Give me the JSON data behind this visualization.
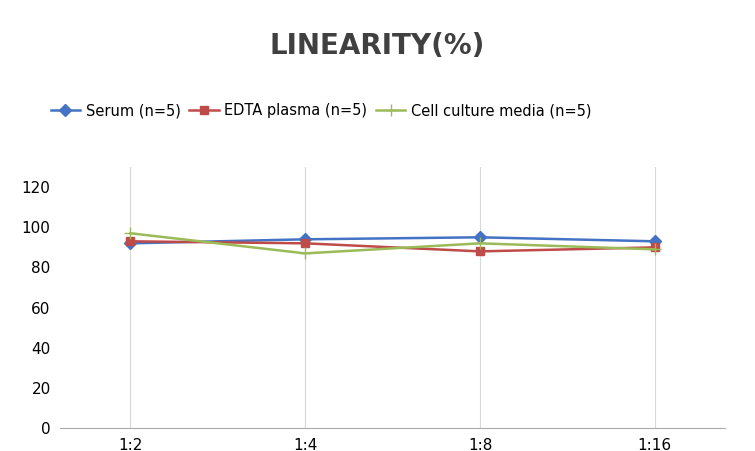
{
  "title": "LINEARITY(%)",
  "title_fontsize": 20,
  "title_fontweight": "bold",
  "x_labels": [
    "1:2",
    "1:4",
    "1:8",
    "1:16"
  ],
  "x_positions": [
    0,
    1,
    2,
    3
  ],
  "series": [
    {
      "label": "Serum (n=5)",
      "values": [
        92,
        94,
        95,
        93
      ],
      "color": "#4472C4",
      "marker": "D",
      "marker_size": 6,
      "linewidth": 1.8
    },
    {
      "label": "EDTA plasma (n=5)",
      "values": [
        93,
        92,
        88,
        90
      ],
      "color": "#BE4B48",
      "marker": "s",
      "marker_size": 6,
      "linewidth": 1.8
    },
    {
      "label": "Cell culture media (n=5)",
      "values": [
        97,
        87,
        92,
        89
      ],
      "color": "#9BBB59",
      "marker": "+",
      "marker_size": 9,
      "linewidth": 1.8
    }
  ],
  "ylim": [
    0,
    130
  ],
  "yticks": [
    0,
    20,
    40,
    60,
    80,
    100,
    120
  ],
  "background_color": "#ffffff",
  "grid_color": "#d8d8d8",
  "legend_fontsize": 10.5,
  "tick_fontsize": 11
}
